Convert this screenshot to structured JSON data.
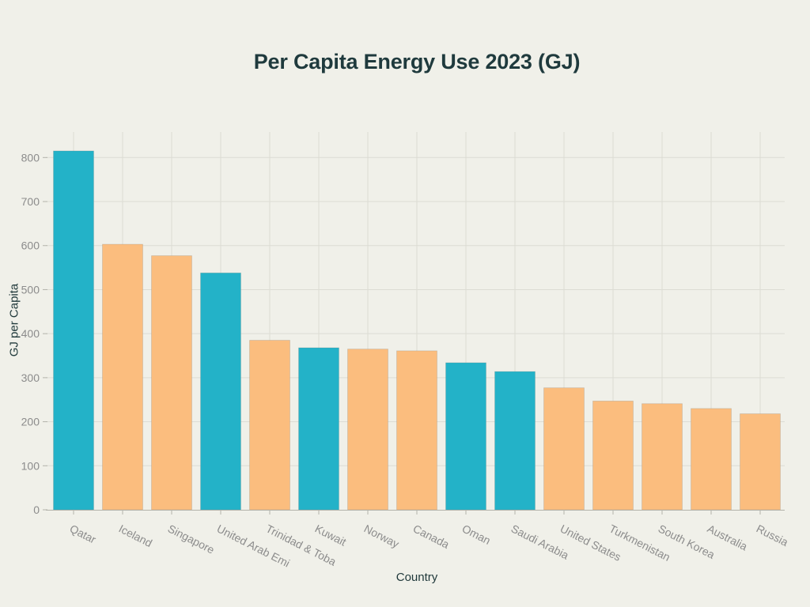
{
  "chart": {
    "title": "Per Capita Energy Use 2023 (GJ)",
    "xlabel": "Country",
    "ylabel": "GJ per Capita"
  },
  "chart_data": {
    "type": "bar",
    "title": "Per Capita Energy Use 2023 (GJ)",
    "xlabel": "Country",
    "ylabel": "GJ per Capita",
    "categories": [
      "Qatar",
      "Iceland",
      "Singapore",
      "United Arab Emi",
      "Trinidad & Toba",
      "Kuwait",
      "Norway",
      "Canada",
      "Oman",
      "Saudi Arabia",
      "United States",
      "Turkmenistan",
      "South Korea",
      "Australia",
      "Russia"
    ],
    "values": [
      815,
      603,
      577,
      538,
      385,
      368,
      365,
      361,
      334,
      314,
      277,
      247,
      241,
      230,
      218
    ],
    "bar_colors": [
      "#23b2c8",
      "#fbbd7e",
      "#fbbd7e",
      "#23b2c8",
      "#fbbd7e",
      "#23b2c8",
      "#fbbd7e",
      "#fbbd7e",
      "#23b2c8",
      "#23b2c8",
      "#fbbd7e",
      "#fbbd7e",
      "#fbbd7e",
      "#fbbd7e",
      "#fbbd7e"
    ],
    "palette": {
      "teal": "#23b2c8",
      "orange": "#fbbd7e"
    },
    "highlight_indices": [
      0,
      3,
      5,
      8,
      9
    ],
    "yticks": [
      0,
      100,
      200,
      300,
      400,
      500,
      600,
      700,
      800
    ],
    "ylim": [
      0,
      858
    ],
    "grid": true,
    "legend": "none",
    "xtick_rotation_deg": 27,
    "background": "#f0f0e9",
    "title_color": "#1f3a3d",
    "tick_label_color": "#8c8c8c",
    "grid_color": "#dcdcd4",
    "axis_line_color": "#b3b3ab"
  }
}
